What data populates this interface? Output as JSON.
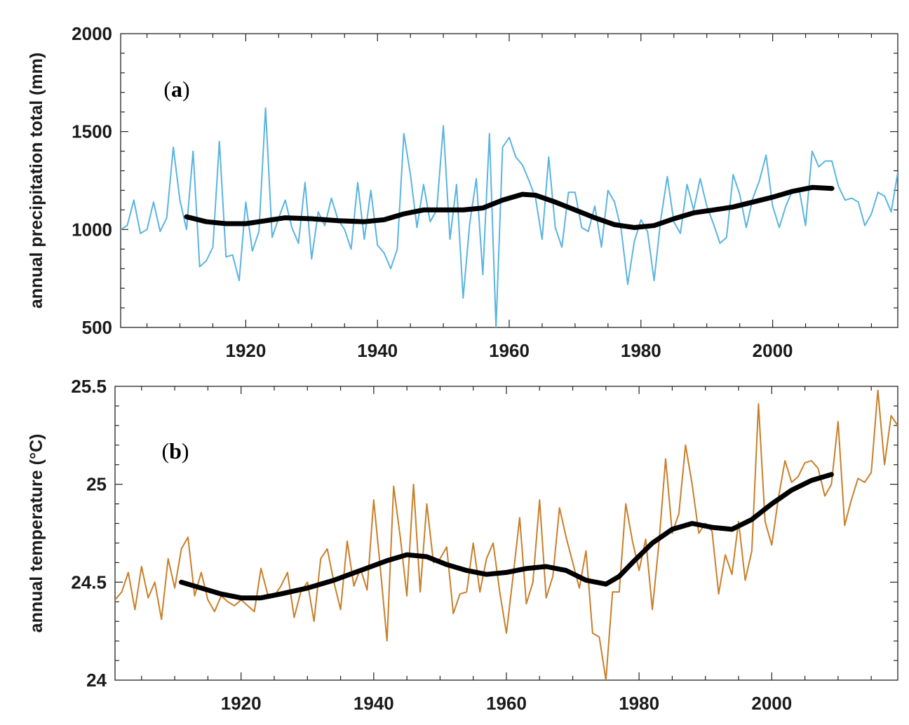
{
  "chart_data": [
    {
      "type": "line",
      "panel_label": "a",
      "title": "",
      "xlabel": "",
      "ylabel": "annual precipitation total (mm)",
      "xlim": [
        1901,
        2019
      ],
      "ylim": [
        500,
        2000
      ],
      "xticks": [
        "1920",
        "1940",
        "1960",
        "1980",
        "2000"
      ],
      "yticks": [
        "500",
        "1000",
        "1500",
        "2000"
      ],
      "grid": false,
      "series": [
        {
          "name": "annual precipitation",
          "color": "#5ab4e0",
          "x": [
            1901,
            1902,
            1903,
            1904,
            1905,
            1906,
            1907,
            1908,
            1909,
            1910,
            1911,
            1912,
            1913,
            1914,
            1915,
            1916,
            1917,
            1918,
            1919,
            1920,
            1921,
            1922,
            1923,
            1924,
            1925,
            1926,
            1927,
            1928,
            1929,
            1930,
            1931,
            1932,
            1933,
            1934,
            1935,
            1936,
            1937,
            1938,
            1939,
            1940,
            1941,
            1942,
            1943,
            1944,
            1945,
            1946,
            1947,
            1948,
            1949,
            1950,
            1951,
            1952,
            1953,
            1954,
            1955,
            1956,
            1957,
            1958,
            1959,
            1960,
            1961,
            1962,
            1963,
            1964,
            1965,
            1966,
            1967,
            1968,
            1969,
            1970,
            1971,
            1972,
            1973,
            1974,
            1975,
            1976,
            1977,
            1978,
            1979,
            1980,
            1981,
            1982,
            1983,
            1984,
            1985,
            1986,
            1987,
            1988,
            1989,
            1990,
            1991,
            1992,
            1993,
            1994,
            1995,
            1996,
            1997,
            1998,
            1999,
            2000,
            2001,
            2002,
            2003,
            2004,
            2005,
            2006,
            2007,
            2008,
            2009,
            2010,
            2011,
            2012,
            2013,
            2014,
            2015,
            2016,
            2017,
            2018,
            2019
          ],
          "values": [
            1000,
            1020,
            1150,
            980,
            1000,
            1140,
            990,
            1060,
            1420,
            1150,
            1000,
            1400,
            810,
            840,
            910,
            1450,
            860,
            870,
            740,
            1140,
            890,
            990,
            1620,
            960,
            1060,
            1150,
            1010,
            930,
            1240,
            850,
            1090,
            1020,
            1160,
            1050,
            1000,
            900,
            1240,
            950,
            1200,
            920,
            880,
            800,
            900,
            1490,
            1280,
            1010,
            1230,
            1040,
            1100,
            1530,
            950,
            1230,
            650,
            1030,
            1260,
            770,
            1490,
            500,
            1420,
            1470,
            1370,
            1330,
            1250,
            1160,
            950,
            1370,
            1010,
            910,
            1190,
            1190,
            1010,
            990,
            1120,
            910,
            1200,
            1140,
            1000,
            720,
            940,
            1050,
            990,
            740,
            1050,
            1270,
            1040,
            980,
            1230,
            1100,
            1260,
            1120,
            1030,
            930,
            960,
            1280,
            1180,
            1010,
            1160,
            1250,
            1380,
            1120,
            1010,
            1120,
            1200,
            1210,
            1020,
            1400,
            1320,
            1350,
            1350,
            1220,
            1150,
            1160,
            1140,
            1020,
            1080,
            1190,
            1170,
            1090,
            1290
          ]
        },
        {
          "name": "smoothed trend",
          "color": "#000000",
          "x": [
            1911,
            1914,
            1917,
            1920,
            1923,
            1926,
            1930,
            1934,
            1938,
            1941,
            1944,
            1947,
            1950,
            1953,
            1956,
            1959,
            1962,
            1964,
            1967,
            1970,
            1973,
            1976,
            1979,
            1982,
            1985,
            1988,
            1991,
            1994,
            1997,
            2000,
            2003,
            2006,
            2009
          ],
          "values": [
            1065,
            1040,
            1030,
            1030,
            1045,
            1060,
            1055,
            1045,
            1040,
            1050,
            1080,
            1100,
            1100,
            1100,
            1110,
            1150,
            1180,
            1175,
            1140,
            1100,
            1060,
            1025,
            1010,
            1020,
            1055,
            1085,
            1100,
            1115,
            1140,
            1165,
            1195,
            1215,
            1210
          ]
        }
      ]
    },
    {
      "type": "line",
      "panel_label": "b",
      "title": "",
      "xlabel": "",
      "ylabel": "annual temperature (°C)",
      "xlim": [
        1901,
        2019
      ],
      "ylim": [
        24,
        25.5
      ],
      "xticks": [
        "1920",
        "1940",
        "1960",
        "1980",
        "2000"
      ],
      "yticks": [
        "24",
        "24.5",
        "25",
        "25.5"
      ],
      "grid": false,
      "series": [
        {
          "name": "annual temperature",
          "color": "#c87f2a",
          "x": [
            1901,
            1902,
            1903,
            1904,
            1905,
            1906,
            1907,
            1908,
            1909,
            1910,
            1911,
            1912,
            1913,
            1914,
            1915,
            1916,
            1917,
            1918,
            1919,
            1920,
            1921,
            1922,
            1923,
            1924,
            1925,
            1926,
            1927,
            1928,
            1929,
            1930,
            1931,
            1932,
            1933,
            1934,
            1935,
            1936,
            1937,
            1938,
            1939,
            1940,
            1941,
            1942,
            1943,
            1944,
            1945,
            1946,
            1947,
            1948,
            1949,
            1950,
            1951,
            1952,
            1953,
            1954,
            1955,
            1956,
            1957,
            1958,
            1959,
            1960,
            1961,
            1962,
            1963,
            1964,
            1965,
            1966,
            1967,
            1968,
            1969,
            1970,
            1971,
            1972,
            1973,
            1974,
            1975,
            1976,
            1977,
            1978,
            1979,
            1980,
            1981,
            1982,
            1983,
            1984,
            1985,
            1986,
            1987,
            1988,
            1989,
            1990,
            1991,
            1992,
            1993,
            1994,
            1995,
            1996,
            1997,
            1998,
            1999,
            2000,
            2001,
            2002,
            2003,
            2004,
            2005,
            2006,
            2007,
            2008,
            2009,
            2010,
            2011,
            2012,
            2013,
            2014,
            2015,
            2016,
            2017,
            2018,
            2019
          ],
          "values": [
            24.41,
            24.45,
            24.55,
            24.36,
            24.58,
            24.42,
            24.5,
            24.31,
            24.62,
            24.47,
            24.67,
            24.73,
            24.43,
            24.55,
            24.41,
            24.35,
            24.43,
            24.4,
            24.38,
            24.41,
            24.38,
            24.35,
            24.57,
            24.44,
            24.43,
            24.48,
            24.55,
            24.32,
            24.45,
            24.5,
            24.3,
            24.62,
            24.67,
            24.5,
            24.36,
            24.71,
            24.48,
            24.57,
            24.46,
            24.92,
            24.57,
            24.2,
            24.99,
            24.73,
            24.43,
            25.0,
            24.45,
            24.9,
            24.6,
            24.62,
            24.68,
            24.34,
            24.44,
            24.45,
            24.7,
            24.45,
            24.62,
            24.7,
            24.45,
            24.24,
            24.53,
            24.83,
            24.39,
            24.5,
            24.92,
            24.42,
            24.53,
            24.88,
            24.73,
            24.6,
            24.47,
            24.66,
            24.24,
            24.22,
            24.0,
            24.45,
            24.45,
            24.9,
            24.71,
            24.56,
            24.72,
            24.36,
            24.7,
            25.13,
            24.75,
            24.85,
            25.2,
            25.0,
            24.75,
            24.8,
            24.76,
            24.44,
            24.64,
            24.54,
            24.81,
            24.51,
            24.66,
            25.41,
            24.81,
            24.69,
            24.93,
            25.12,
            25.01,
            25.04,
            25.11,
            25.12,
            25.08,
            24.94,
            25.0,
            25.32,
            24.79,
            24.92,
            25.03,
            25.01,
            25.06,
            25.48,
            25.1,
            25.35,
            25.3
          ]
        },
        {
          "name": "smoothed trend",
          "color": "#000000",
          "x": [
            1911,
            1914,
            1917,
            1920,
            1923,
            1926,
            1930,
            1934,
            1938,
            1942,
            1945,
            1948,
            1951,
            1954,
            1957,
            1960,
            1963,
            1966,
            1969,
            1972,
            1975,
            1977,
            1979,
            1982,
            1985,
            1988,
            1991,
            1994,
            1997,
            2000,
            2003,
            2006,
            2009
          ],
          "values": [
            24.5,
            24.47,
            24.44,
            24.42,
            24.42,
            24.44,
            24.47,
            24.51,
            24.56,
            24.61,
            24.64,
            24.63,
            24.59,
            24.56,
            24.54,
            24.55,
            24.57,
            24.58,
            24.56,
            24.51,
            24.49,
            24.53,
            24.6,
            24.7,
            24.77,
            24.8,
            24.78,
            24.77,
            24.82,
            24.9,
            24.97,
            25.02,
            25.05
          ]
        }
      ]
    }
  ]
}
